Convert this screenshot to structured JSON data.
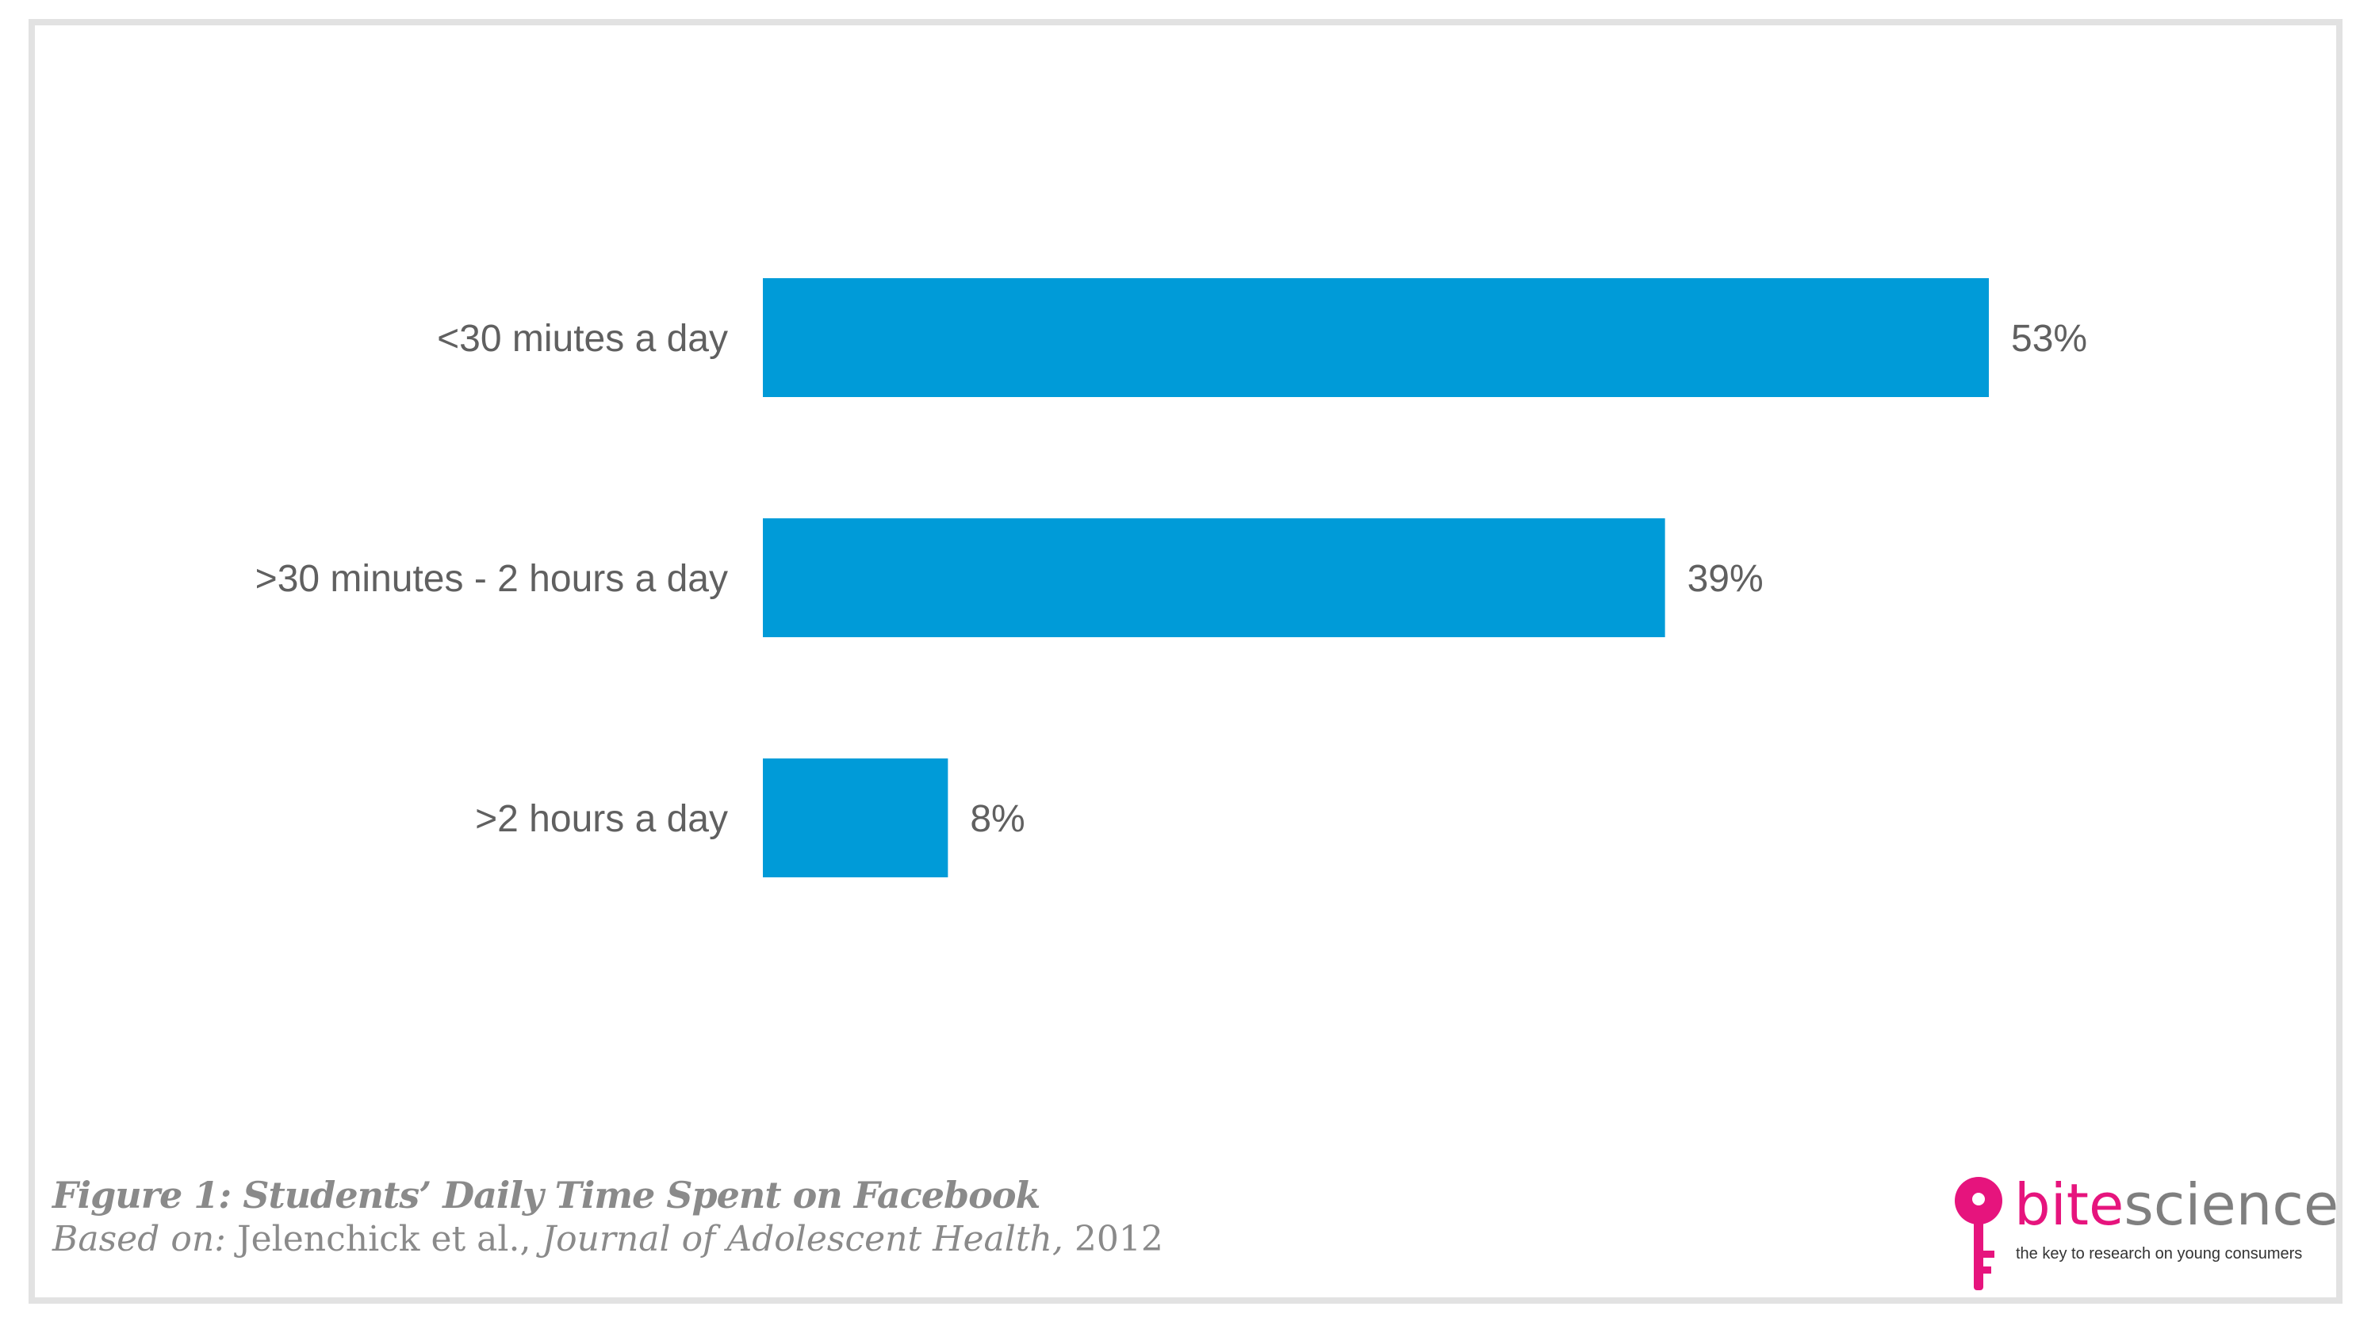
{
  "chart_data": {
    "type": "bar",
    "orientation": "horizontal",
    "categories": [
      "<30 miutes a day",
      ">30 minutes - 2 hours a day",
      ">2 hours a day"
    ],
    "values": [
      53,
      39,
      8
    ],
    "value_labels": [
      "53%",
      "39%",
      "8%"
    ],
    "unit": "%",
    "xlim": [
      0,
      53
    ],
    "grid": false,
    "legend": "none",
    "bar_color": "#009bd8"
  },
  "caption": {
    "title": "Figure 1: Students’ Daily Time Spent on Facebook",
    "based_on": "Based on:",
    "authors": " Jelenchick et al., ",
    "journal": "Journal of Adolescent Health,",
    "year": " 2012"
  },
  "logo": {
    "brand_bite": "bite",
    "brand_science": "science",
    "tagline": "the key to research on young consumers",
    "icon": "key-icon",
    "brand_color": "#e6147d"
  }
}
